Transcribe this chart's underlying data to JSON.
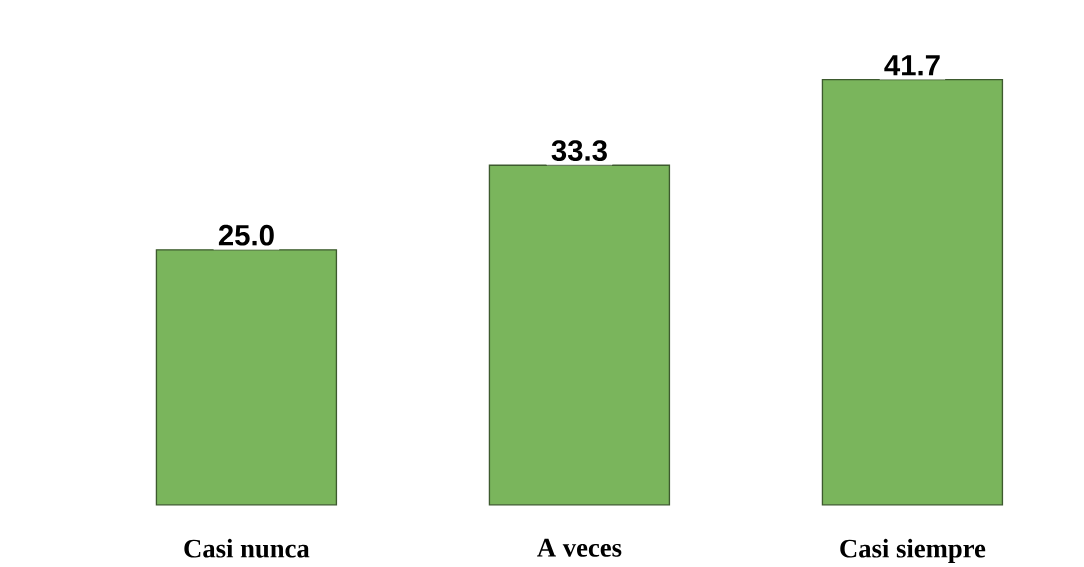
{
  "chart_data": {
    "type": "bar",
    "categories": [
      "Casi nunca",
      "A veces",
      "Casi siempre"
    ],
    "values": [
      25.0,
      33.3,
      41.7
    ],
    "value_labels": [
      "25.0",
      "33.3",
      "41.7"
    ],
    "color": "#7ab55c"
  }
}
